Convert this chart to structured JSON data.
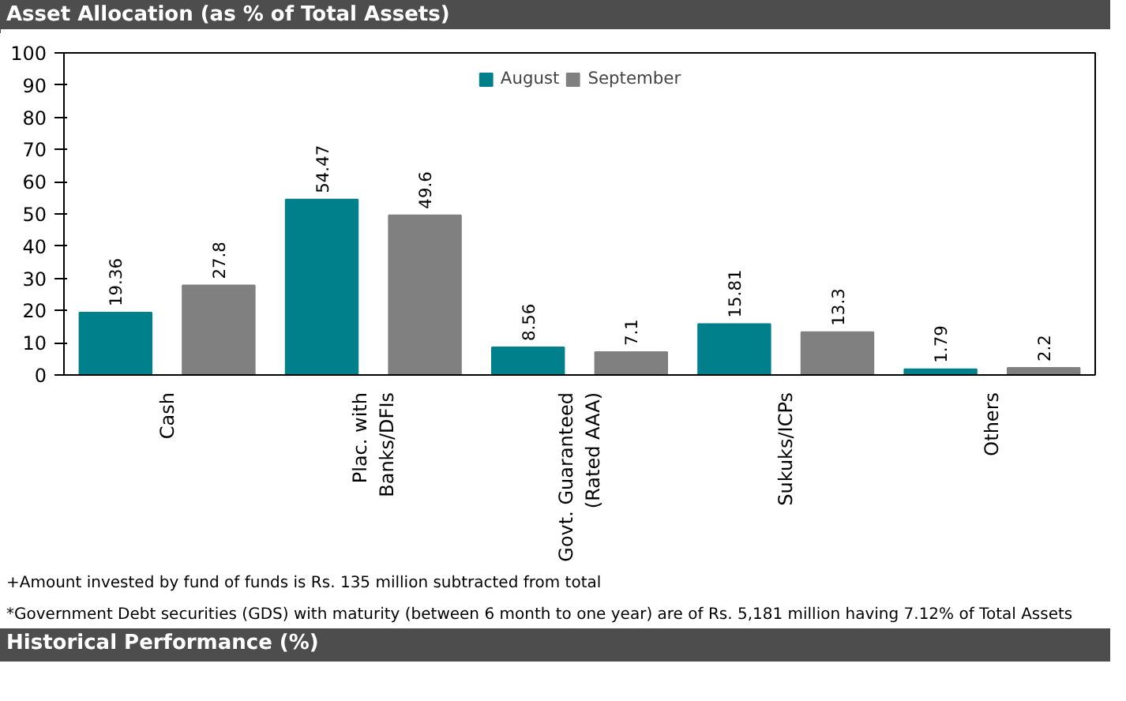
{
  "chart_data": {
    "type": "bar",
    "title": "Asset Allocation (as % of Total Assets)",
    "categories": [
      "Cash",
      "Plac. with\nBanks/DFIs",
      "Govt. Guaranteed\n(Rated AAA)",
      "Sukuks/ICPs",
      "Others"
    ],
    "series": [
      {
        "name": "August",
        "color": "#00808a",
        "values": [
          19.36,
          54.47,
          8.56,
          15.81,
          1.79
        ]
      },
      {
        "name": "September",
        "color": "#808080",
        "values": [
          27.8,
          49.6,
          7.1,
          13.3,
          2.2
        ]
      }
    ],
    "ylim": [
      0,
      100
    ],
    "yticks": [
      0,
      10,
      20,
      30,
      40,
      50,
      60,
      70,
      80,
      90,
      100
    ],
    "grid": false,
    "legend": "top",
    "data_labels": true,
    "annotations": [
      "+Amount invested by fund of funds is Rs. 135 million subtracted from total",
      "*Government Debt securities (GDS) with maturity (between 6 month to one year) are of Rs. 5,181 million having 7.12% of Total Assets",
      "Historical Performance (%)"
    ]
  }
}
